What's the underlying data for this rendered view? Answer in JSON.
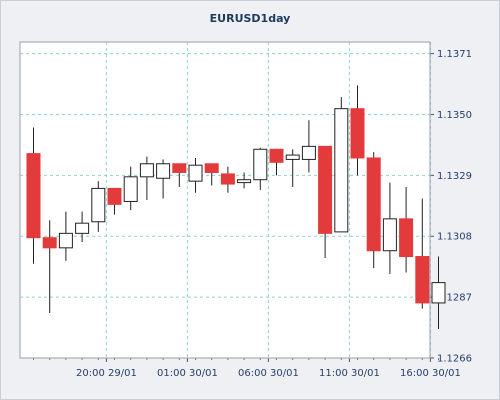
{
  "chart_data": {
    "type": "candlestick",
    "title": "EURUSD1day",
    "ylim": [
      1.1266,
      1.1375
    ],
    "grid": true,
    "colors": {
      "bearish": "#e33b3b",
      "bullish": "#ffffff",
      "outline": "#222222",
      "grid": "#8fd3cf",
      "plot_bg": "#ffffff",
      "page_bg": "#eef0f4",
      "label": "#27406b"
    },
    "yticks": [
      1.1266,
      1.1287,
      1.1308,
      1.1329,
      1.135,
      1.1371
    ],
    "ytick_labels": [
      "1.1266",
      "1.1287",
      "1.1308",
      "1.1329",
      "1.1350",
      "1.1371"
    ],
    "xtick_labels": [
      "20:00 29/01",
      "01:00 30/01",
      "06:00 30/01",
      "11:00 30/01",
      "16:00 30/01"
    ],
    "xtick_after_candle": [
      4.5,
      9.5,
      14.5,
      19.5,
      24.5
    ],
    "candles": [
      {
        "open": 1.13365,
        "high": 1.13455,
        "low": 1.12985,
        "close": 1.13075
      },
      {
        "open": 1.13075,
        "high": 1.13135,
        "low": 1.12815,
        "close": 1.1304
      },
      {
        "open": 1.1304,
        "high": 1.13165,
        "low": 1.12995,
        "close": 1.1309
      },
      {
        "open": 1.1309,
        "high": 1.13165,
        "low": 1.1306,
        "close": 1.13125
      },
      {
        "open": 1.1313,
        "high": 1.1327,
        "low": 1.13095,
        "close": 1.13245
      },
      {
        "open": 1.13245,
        "high": 1.13245,
        "low": 1.13155,
        "close": 1.1319
      },
      {
        "open": 1.132,
        "high": 1.1332,
        "low": 1.1317,
        "close": 1.13285
      },
      {
        "open": 1.13285,
        "high": 1.13355,
        "low": 1.13205,
        "close": 1.1333
      },
      {
        "open": 1.1328,
        "high": 1.13345,
        "low": 1.1321,
        "close": 1.1333
      },
      {
        "open": 1.1333,
        "high": 1.1333,
        "low": 1.1325,
        "close": 1.133
      },
      {
        "open": 1.1327,
        "high": 1.1335,
        "low": 1.1323,
        "close": 1.13325
      },
      {
        "open": 1.1333,
        "high": 1.1333,
        "low": 1.13255,
        "close": 1.133
      },
      {
        "open": 1.13295,
        "high": 1.1332,
        "low": 1.1323,
        "close": 1.1326
      },
      {
        "open": 1.13265,
        "high": 1.133,
        "low": 1.13245,
        "close": 1.13275
      },
      {
        "open": 1.13275,
        "high": 1.13385,
        "low": 1.1324,
        "close": 1.1338
      },
      {
        "open": 1.1338,
        "high": 1.1338,
        "low": 1.1329,
        "close": 1.13335
      },
      {
        "open": 1.13345,
        "high": 1.1338,
        "low": 1.1325,
        "close": 1.1336
      },
      {
        "open": 1.13345,
        "high": 1.1348,
        "low": 1.133,
        "close": 1.1339
      },
      {
        "open": 1.1339,
        "high": 1.1339,
        "low": 1.13005,
        "close": 1.1309
      },
      {
        "open": 1.13095,
        "high": 1.1356,
        "low": 1.13095,
        "close": 1.1352
      },
      {
        "open": 1.1352,
        "high": 1.136,
        "low": 1.1329,
        "close": 1.1335
      },
      {
        "open": 1.1335,
        "high": 1.1337,
        "low": 1.1297,
        "close": 1.1303
      },
      {
        "open": 1.1303,
        "high": 1.13265,
        "low": 1.1295,
        "close": 1.1314
      },
      {
        "open": 1.1314,
        "high": 1.1325,
        "low": 1.12955,
        "close": 1.1301
      },
      {
        "open": 1.1301,
        "high": 1.1321,
        "low": 1.1283,
        "close": 1.1285
      },
      {
        "open": 1.1285,
        "high": 1.1301,
        "low": 1.1276,
        "close": 1.1292
      }
    ]
  }
}
